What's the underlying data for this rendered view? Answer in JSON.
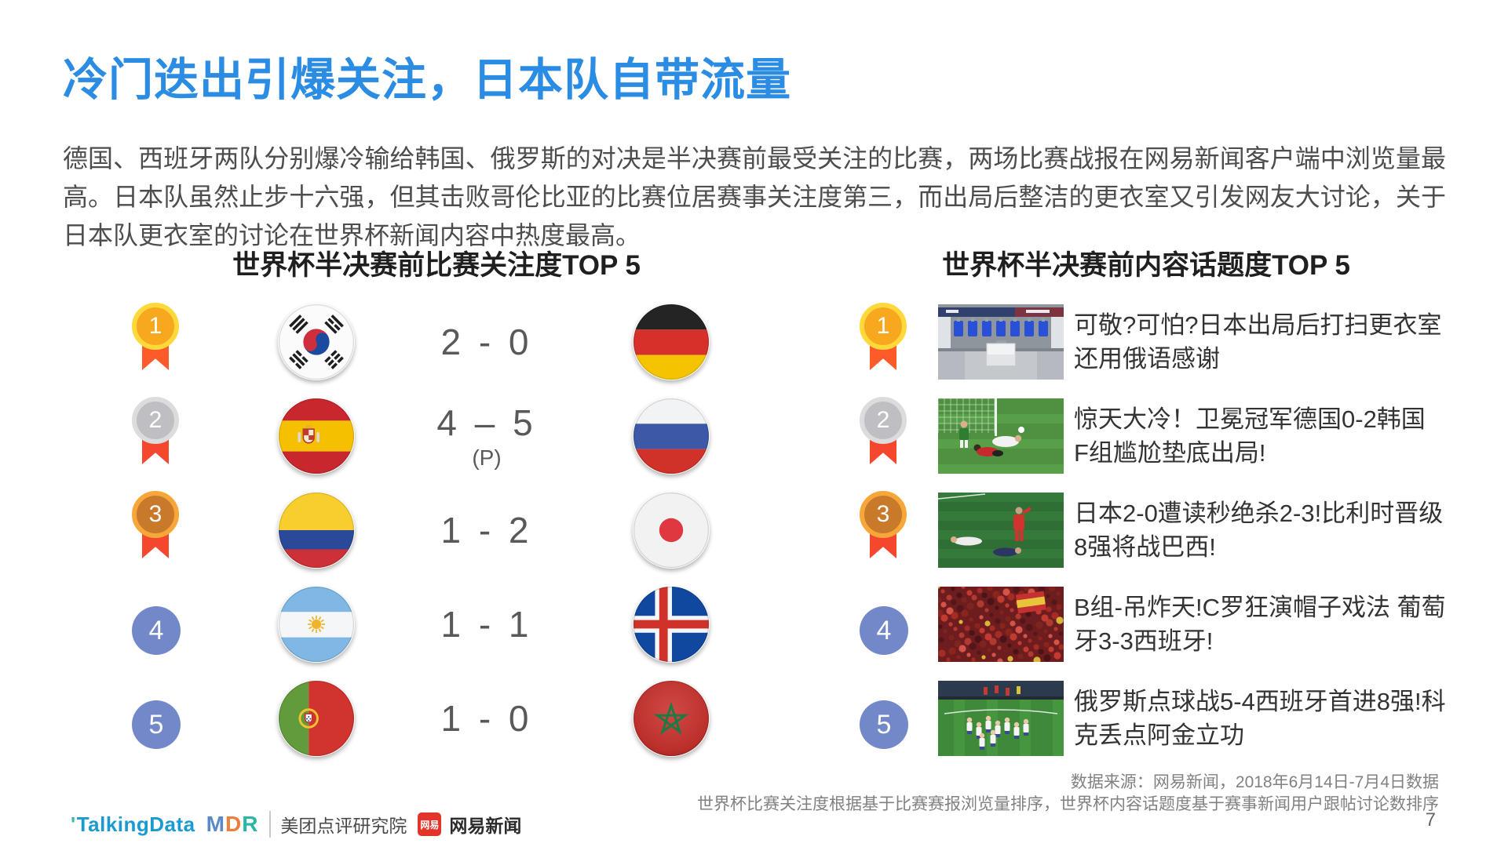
{
  "slide": {
    "title": "冷门迭出引爆关注，日本队自带流量",
    "paragraph": "德国、西班牙两队分别爆冷输给韩国、俄罗斯的对决是半决赛前最受关注的比赛，两场比赛战报在网易新闻客户端中浏览量最高。日本队虽然止步十六强，但其击败哥伦比亚的比赛位居赛事关注度第三，而出局后整洁的更衣室又引发网友大讨论，关于日本队更衣室的讨论在世界杯新闻内容中热度最高。",
    "page_number": "7"
  },
  "left_panel": {
    "header": "世界杯半决赛前比赛关注度TOP 5",
    "rows": [
      {
        "rank": "1",
        "home": {
          "team": "South Korea",
          "flag": "kr"
        },
        "score": "2 - 0",
        "score_note": "",
        "away": {
          "team": "Germany",
          "flag": "de"
        }
      },
      {
        "rank": "2",
        "home": {
          "team": "Spain",
          "flag": "es"
        },
        "score": "4 – 5",
        "score_note": "(P)",
        "away": {
          "team": "Russia",
          "flag": "ru"
        }
      },
      {
        "rank": "3",
        "home": {
          "team": "Colombia",
          "flag": "co"
        },
        "score": "1 - 2",
        "score_note": "",
        "away": {
          "team": "Japan",
          "flag": "jp"
        }
      },
      {
        "rank": "4",
        "home": {
          "team": "Argentina",
          "flag": "ar"
        },
        "score": "1 - 1",
        "score_note": "",
        "away": {
          "team": "Iceland",
          "flag": "is"
        }
      },
      {
        "rank": "5",
        "home": {
          "team": "Portugal",
          "flag": "pt"
        },
        "score": "1 - 0",
        "score_note": "",
        "away": {
          "team": "Morocco",
          "flag": "ma"
        }
      }
    ]
  },
  "right_panel": {
    "header": "世界杯半决赛前内容话题度TOP 5",
    "rows": [
      {
        "rank": "1",
        "photo": "japan-locker-room",
        "headline": "可敬?可怕?日本出局后打扫更衣室 还用俄语感谢"
      },
      {
        "rank": "2",
        "photo": "germany-korea-goal",
        "headline": "惊天大冷！卫冕冠军德国0-2韩国 F组尴尬垫底出局!"
      },
      {
        "rank": "3",
        "photo": "japan-belgium-pitch",
        "headline": "日本2-0遭读秒绝杀2-3!比利时晋级8强将战巴西!"
      },
      {
        "rank": "4",
        "photo": "portugal-spain-crowd",
        "headline": "B组-吊炸天!C罗狂演帽子戏法 葡萄牙3-3西班牙!"
      },
      {
        "rank": "5",
        "photo": "russia-spain-celebration",
        "headline": "俄罗斯点球战5-4西班牙首进8强!科克丢点阿金立功"
      }
    ]
  },
  "footnotes": {
    "line1": "数据来源：网易新闻，2018年6月14日-7月4日数据",
    "line2": "世界杯比赛关注度根据基于比赛赛报浏览量排序，世界杯内容话题度基于赛事新闻用户跟帖讨论数排序"
  },
  "footer": {
    "talkingdata": "TalkingData",
    "mdr": "MDR",
    "meituan": "美团点评研究院",
    "netease_badge": "网易",
    "netease": "网易新闻"
  },
  "colors": {
    "title_blue": "#2b8ce4",
    "rank_gold": "#f7a81f",
    "rank_silver": "#bfbfc3",
    "rank_bronze": "#c9792a",
    "rank_blue": "#7288c9",
    "ribbon_red": "#f4472e",
    "body_text": "#4d4d4d",
    "score_text": "#595959",
    "footnote_gray": "#818181"
  }
}
